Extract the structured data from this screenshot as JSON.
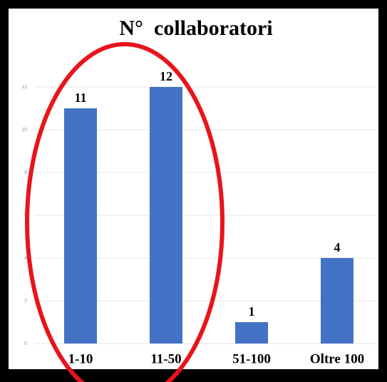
{
  "chart_data": {
    "type": "bar",
    "title": "N°  collaboratori",
    "categories": [
      "1-10",
      "11-50",
      "51-100",
      "Oltre 100"
    ],
    "values": [
      11,
      12,
      1,
      4
    ],
    "color": "#4472c4",
    "ylim": [
      0,
      12
    ],
    "yticks": [
      0,
      2,
      4,
      6,
      8,
      10,
      12
    ],
    "grid": true
  }
}
